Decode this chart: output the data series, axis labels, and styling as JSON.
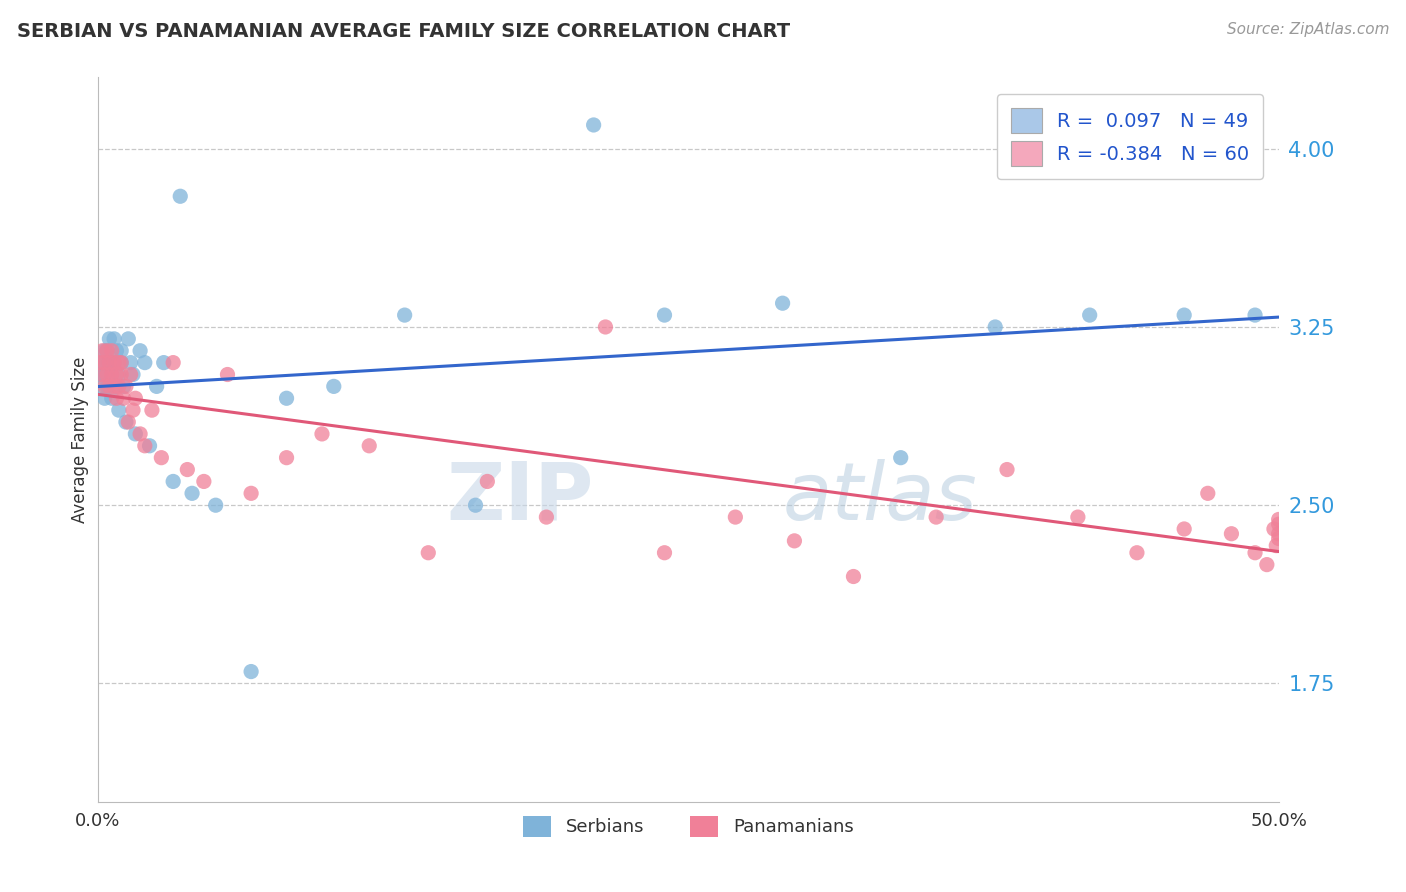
{
  "title": "SERBIAN VS PANAMANIAN AVERAGE FAMILY SIZE CORRELATION CHART",
  "source_text": "Source: ZipAtlas.com",
  "ylabel": "Average Family Size",
  "xmin": 0.0,
  "xmax": 0.5,
  "ymin": 1.25,
  "ymax": 4.3,
  "yticks": [
    1.75,
    2.5,
    3.25,
    4.0
  ],
  "ytick_labels": [
    "1.75",
    "2.50",
    "3.25",
    "4.00"
  ],
  "watermark_zip": "ZIP",
  "watermark_atlas": "atlas",
  "serbian_color": "#7fb3d9",
  "panamanian_color": "#f08098",
  "serbian_line_color": "#3366cc",
  "panamanian_line_color": "#e05878",
  "legend_serbian_color": "#aac8e8",
  "legend_panamanian_color": "#f4a8bc",
  "serbian_x": [
    0.001,
    0.002,
    0.002,
    0.003,
    0.003,
    0.003,
    0.004,
    0.004,
    0.004,
    0.005,
    0.005,
    0.006,
    0.006,
    0.007,
    0.007,
    0.008,
    0.008,
    0.009,
    0.009,
    0.01,
    0.01,
    0.011,
    0.012,
    0.013,
    0.014,
    0.015,
    0.016,
    0.018,
    0.02,
    0.022,
    0.025,
    0.028,
    0.032,
    0.035,
    0.04,
    0.05,
    0.065,
    0.08,
    0.1,
    0.13,
    0.16,
    0.21,
    0.24,
    0.29,
    0.34,
    0.38,
    0.42,
    0.46,
    0.49
  ],
  "serbian_y": [
    3.05,
    3.1,
    3.0,
    3.15,
    3.05,
    2.95,
    3.1,
    3.0,
    3.15,
    3.2,
    3.1,
    3.05,
    2.95,
    3.1,
    3.2,
    3.0,
    3.15,
    3.05,
    2.9,
    3.1,
    3.15,
    3.0,
    2.85,
    3.2,
    3.1,
    3.05,
    2.8,
    3.15,
    3.1,
    2.75,
    3.0,
    3.1,
    2.6,
    3.8,
    2.55,
    2.5,
    1.8,
    2.95,
    3.0,
    3.3,
    2.5,
    4.1,
    3.3,
    3.35,
    2.7,
    3.25,
    3.3,
    3.3,
    3.3
  ],
  "panamanian_x": [
    0.001,
    0.002,
    0.002,
    0.003,
    0.003,
    0.004,
    0.004,
    0.005,
    0.005,
    0.006,
    0.006,
    0.007,
    0.007,
    0.008,
    0.008,
    0.009,
    0.009,
    0.01,
    0.01,
    0.011,
    0.012,
    0.013,
    0.014,
    0.015,
    0.016,
    0.018,
    0.02,
    0.023,
    0.027,
    0.032,
    0.038,
    0.045,
    0.055,
    0.065,
    0.08,
    0.095,
    0.115,
    0.14,
    0.165,
    0.19,
    0.215,
    0.24,
    0.27,
    0.295,
    0.32,
    0.355,
    0.385,
    0.415,
    0.44,
    0.46,
    0.47,
    0.48,
    0.49,
    0.495,
    0.498,
    0.499,
    0.5,
    0.5,
    0.5,
    0.5
  ],
  "panamanian_y": [
    3.1,
    3.05,
    3.15,
    3.0,
    3.1,
    3.05,
    3.15,
    3.1,
    3.0,
    3.05,
    3.15,
    3.0,
    3.1,
    3.05,
    2.95,
    3.1,
    3.0,
    3.05,
    3.1,
    2.95,
    3.0,
    2.85,
    3.05,
    2.9,
    2.95,
    2.8,
    2.75,
    2.9,
    2.7,
    3.1,
    2.65,
    2.6,
    3.05,
    2.55,
    2.7,
    2.8,
    2.75,
    2.3,
    2.6,
    2.45,
    3.25,
    2.3,
    2.45,
    2.35,
    2.2,
    2.45,
    2.65,
    2.45,
    2.3,
    2.4,
    2.55,
    2.38,
    2.3,
    2.25,
    2.4,
    2.33,
    2.38,
    2.42,
    2.36,
    2.44
  ]
}
